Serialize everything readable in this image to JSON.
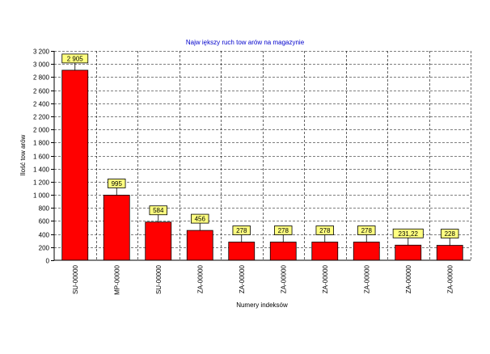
{
  "chart_data": {
    "type": "bar",
    "title": "Najw iększy ruch tow arów  na magazynie",
    "xlabel": "Numery indeksów",
    "ylabel": "Ilość tow arów",
    "categories": [
      "SU-00000",
      "MP-00000",
      "SU-00000",
      "ZA-00000",
      "ZA-00000",
      "ZA-00000",
      "ZA-00000",
      "ZA-00000",
      "ZA-00000",
      "ZA-00000"
    ],
    "values": [
      2905,
      995,
      584,
      456,
      278,
      278,
      278,
      278,
      231.22,
      228
    ],
    "data_labels": [
      "2 905",
      "995",
      "584",
      "456",
      "278",
      "278",
      "278",
      "278",
      "231,22",
      "228"
    ],
    "ylim": [
      0,
      3200
    ],
    "yticks": [
      0,
      200,
      400,
      600,
      800,
      1000,
      1200,
      1400,
      1600,
      1800,
      2000,
      2200,
      2400,
      2600,
      2800,
      3000,
      3200
    ],
    "ytick_labels": [
      "0",
      "200",
      "400",
      "600",
      "800",
      "1 000",
      "1 200",
      "1 400",
      "1 600",
      "1 800",
      "2 000",
      "2 200",
      "2 400",
      "2 600",
      "2 800",
      "3 000",
      "3 200"
    ],
    "grid": true,
    "legend": "none",
    "colors": {
      "bar": "#ff0000",
      "label_box": "#ffff80",
      "title": "#0000cc",
      "grid": "#000000"
    }
  }
}
